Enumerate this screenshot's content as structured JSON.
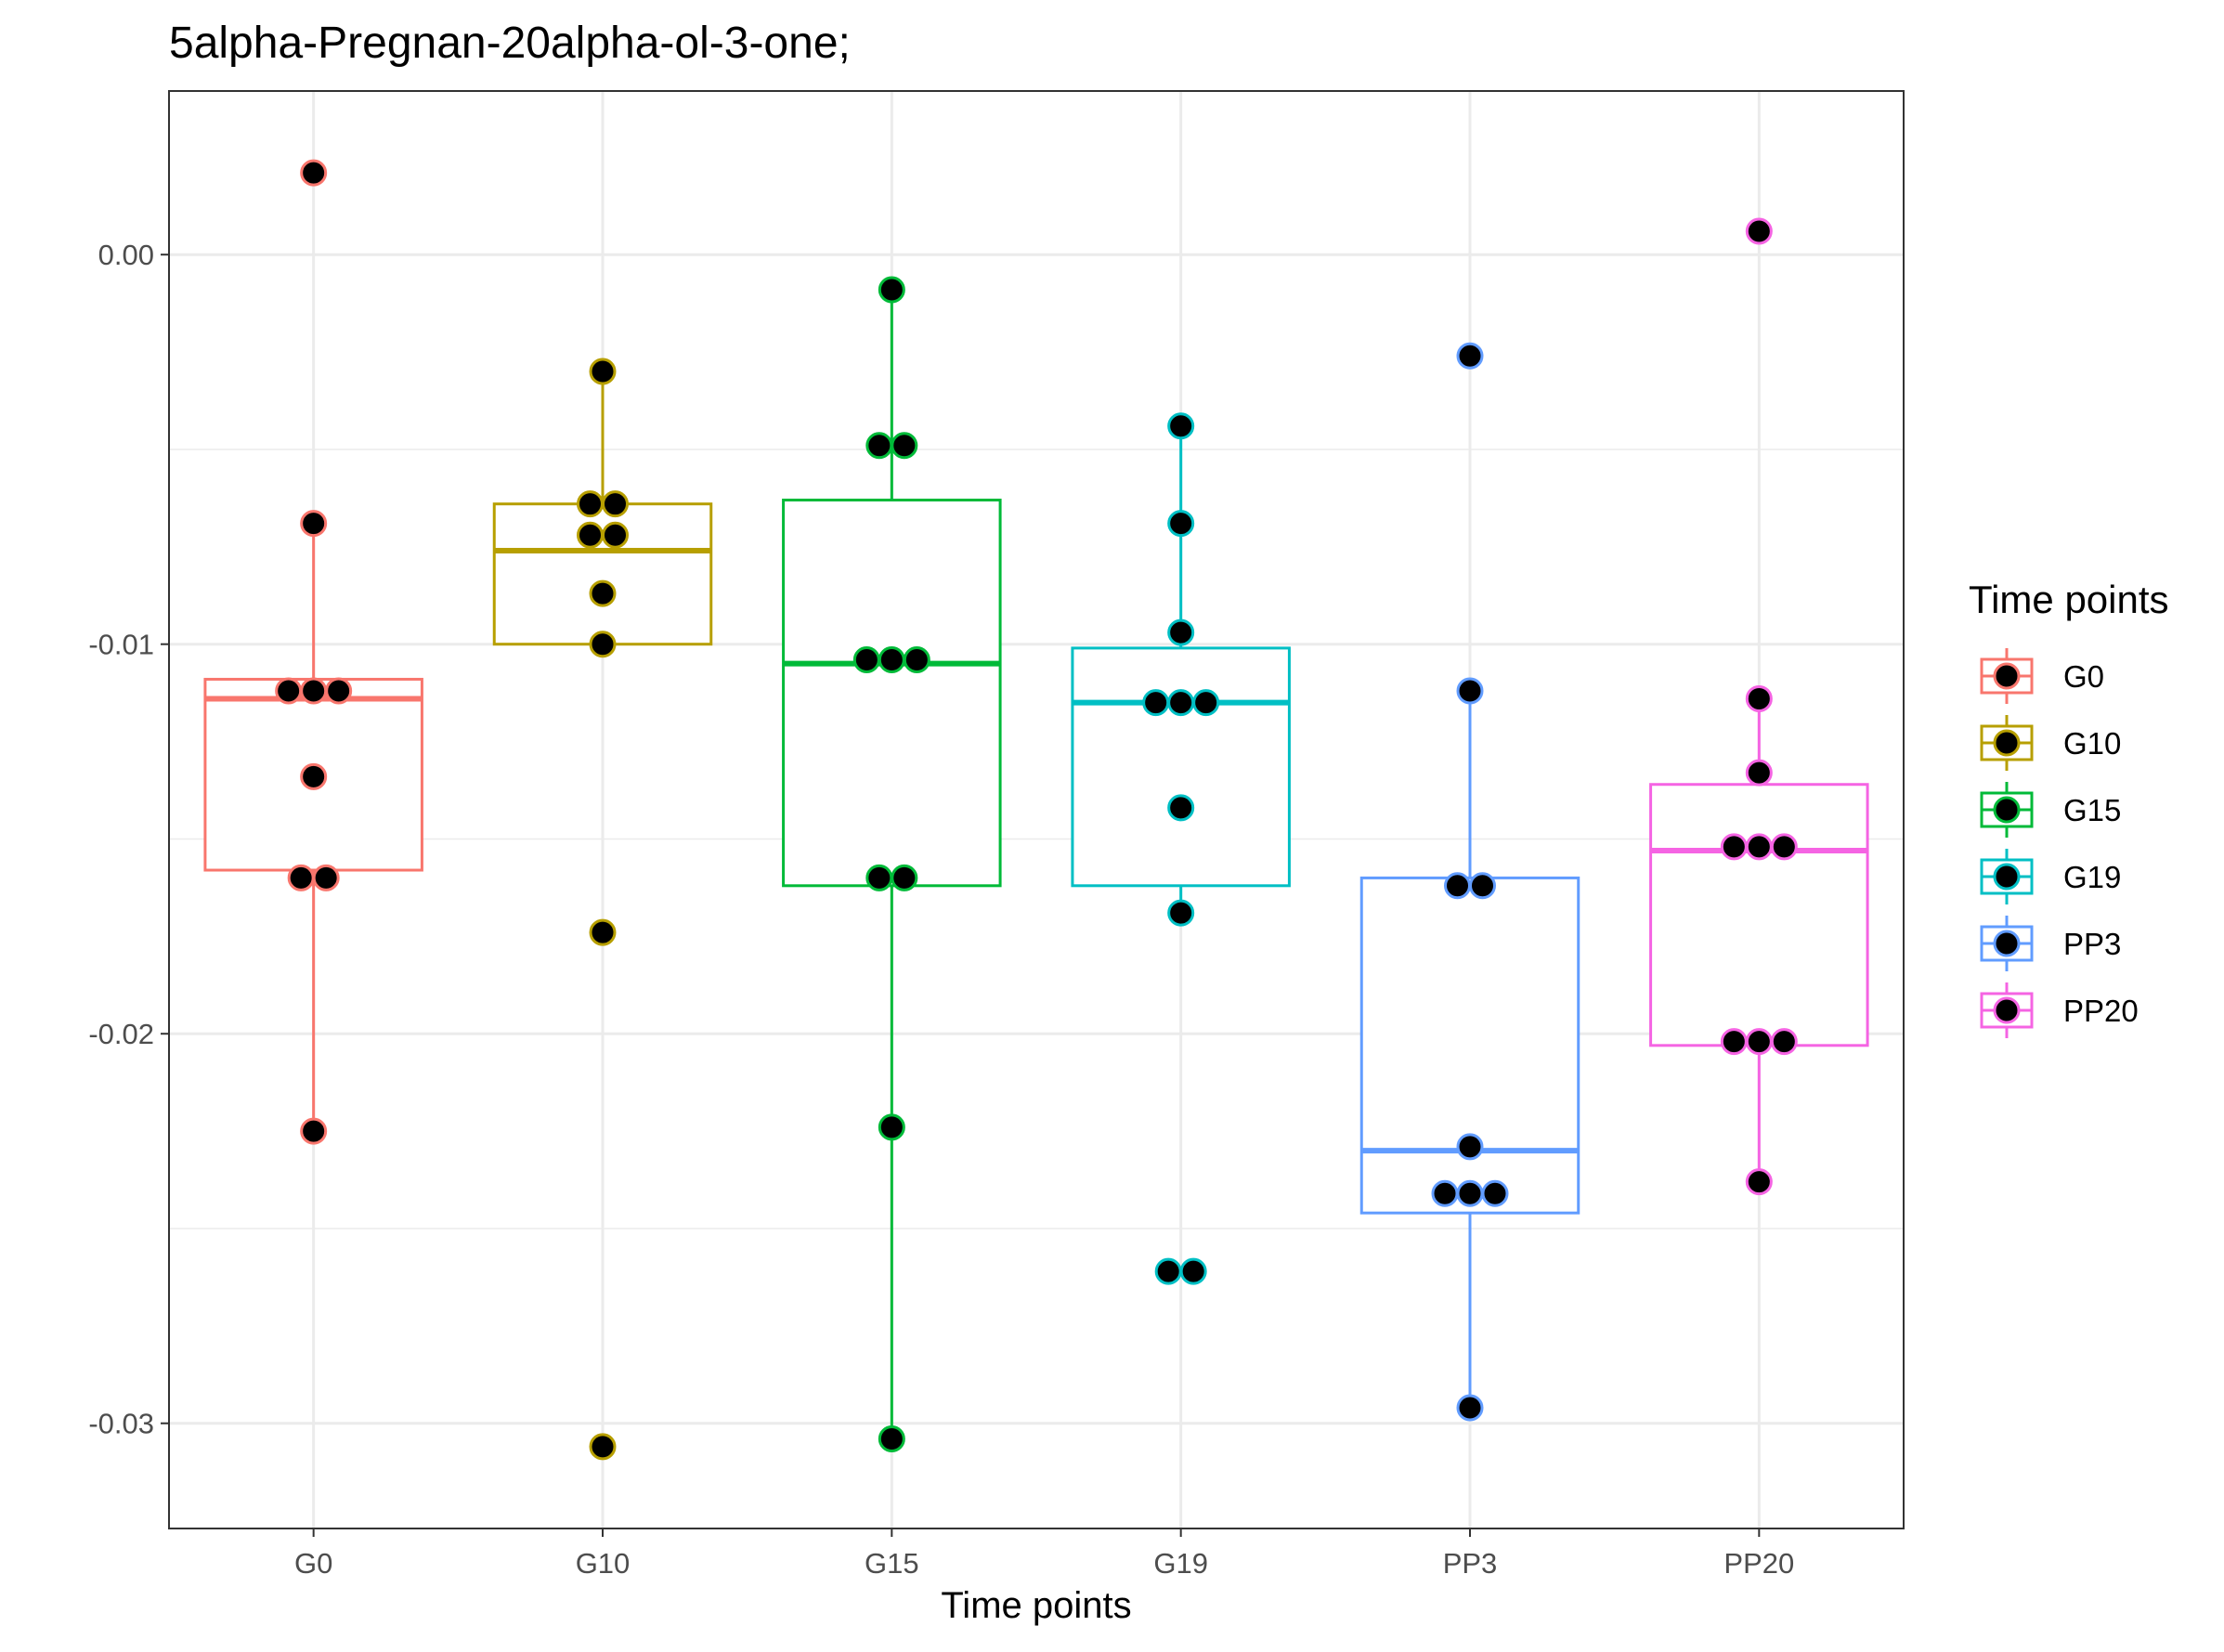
{
  "chart_data": {
    "type": "box",
    "title": "5alpha-Pregnan-20alpha-ol-3-one;",
    "xlabel": "Time points",
    "ylabel": "",
    "ylim": [
      -0.0327,
      0.0042
    ],
    "yticks": [
      0.0,
      -0.01,
      -0.02,
      -0.03
    ],
    "ytick_labels": [
      "0.00",
      "-0.01",
      "-0.02",
      "-0.03"
    ],
    "grid": true,
    "legend": {
      "title": "Time points",
      "position": "right"
    },
    "categories": [
      "G0",
      "G10",
      "G15",
      "G19",
      "PP3",
      "PP20"
    ],
    "series": [
      {
        "name": "G0",
        "color": "#F8766D",
        "box": {
          "q1": -0.0158,
          "median": -0.0114,
          "q3": -0.0109,
          "whisker_low": -0.0225,
          "whisker_high": -0.0069
        },
        "points": [
          0.0021,
          -0.0069,
          -0.0112,
          -0.0112,
          -0.0112,
          -0.0134,
          -0.016,
          -0.016,
          -0.0225
        ]
      },
      {
        "name": "G10",
        "color": "#B79F00",
        "box": {
          "q1": -0.01,
          "median": -0.0076,
          "q3": -0.0064,
          "whisker_low": -0.01,
          "whisker_high": -0.003
        },
        "points": [
          -0.003,
          -0.0064,
          -0.0064,
          -0.0072,
          -0.0072,
          -0.0087,
          -0.01,
          -0.0174,
          -0.0306
        ]
      },
      {
        "name": "G15",
        "color": "#00BA38",
        "box": {
          "q1": -0.0162,
          "median": -0.0105,
          "q3": -0.0063,
          "whisker_low": -0.0304,
          "whisker_high": -0.0009
        },
        "points": [
          -0.0009,
          -0.0049,
          -0.0049,
          -0.0104,
          -0.0104,
          -0.0104,
          -0.016,
          -0.016,
          -0.0224,
          -0.0304
        ]
      },
      {
        "name": "G19",
        "color": "#00BFC4",
        "box": {
          "q1": -0.0162,
          "median": -0.0115,
          "q3": -0.0101,
          "whisker_low": -0.0169,
          "whisker_high": -0.0044
        },
        "points": [
          -0.0044,
          -0.0069,
          -0.0097,
          -0.0115,
          -0.0115,
          -0.0115,
          -0.0142,
          -0.0169,
          -0.0261,
          -0.0261
        ]
      },
      {
        "name": "PP3",
        "color": "#619CFF",
        "box": {
          "q1": -0.0246,
          "median": -0.023,
          "q3": -0.016,
          "whisker_low": -0.0296,
          "whisker_high": -0.0112
        },
        "points": [
          -0.0026,
          -0.0112,
          -0.0162,
          -0.0162,
          -0.0229,
          -0.0241,
          -0.0241,
          -0.0241,
          -0.0296
        ]
      },
      {
        "name": "PP20",
        "color": "#F564E3",
        "box": {
          "q1": -0.0203,
          "median": -0.0153,
          "q3": -0.0136,
          "whisker_low": -0.0238,
          "whisker_high": -0.0114
        },
        "points": [
          0.0006,
          -0.0114,
          -0.0133,
          -0.0152,
          -0.0152,
          -0.0152,
          -0.0202,
          -0.0202,
          -0.0202,
          -0.0238
        ]
      }
    ]
  }
}
